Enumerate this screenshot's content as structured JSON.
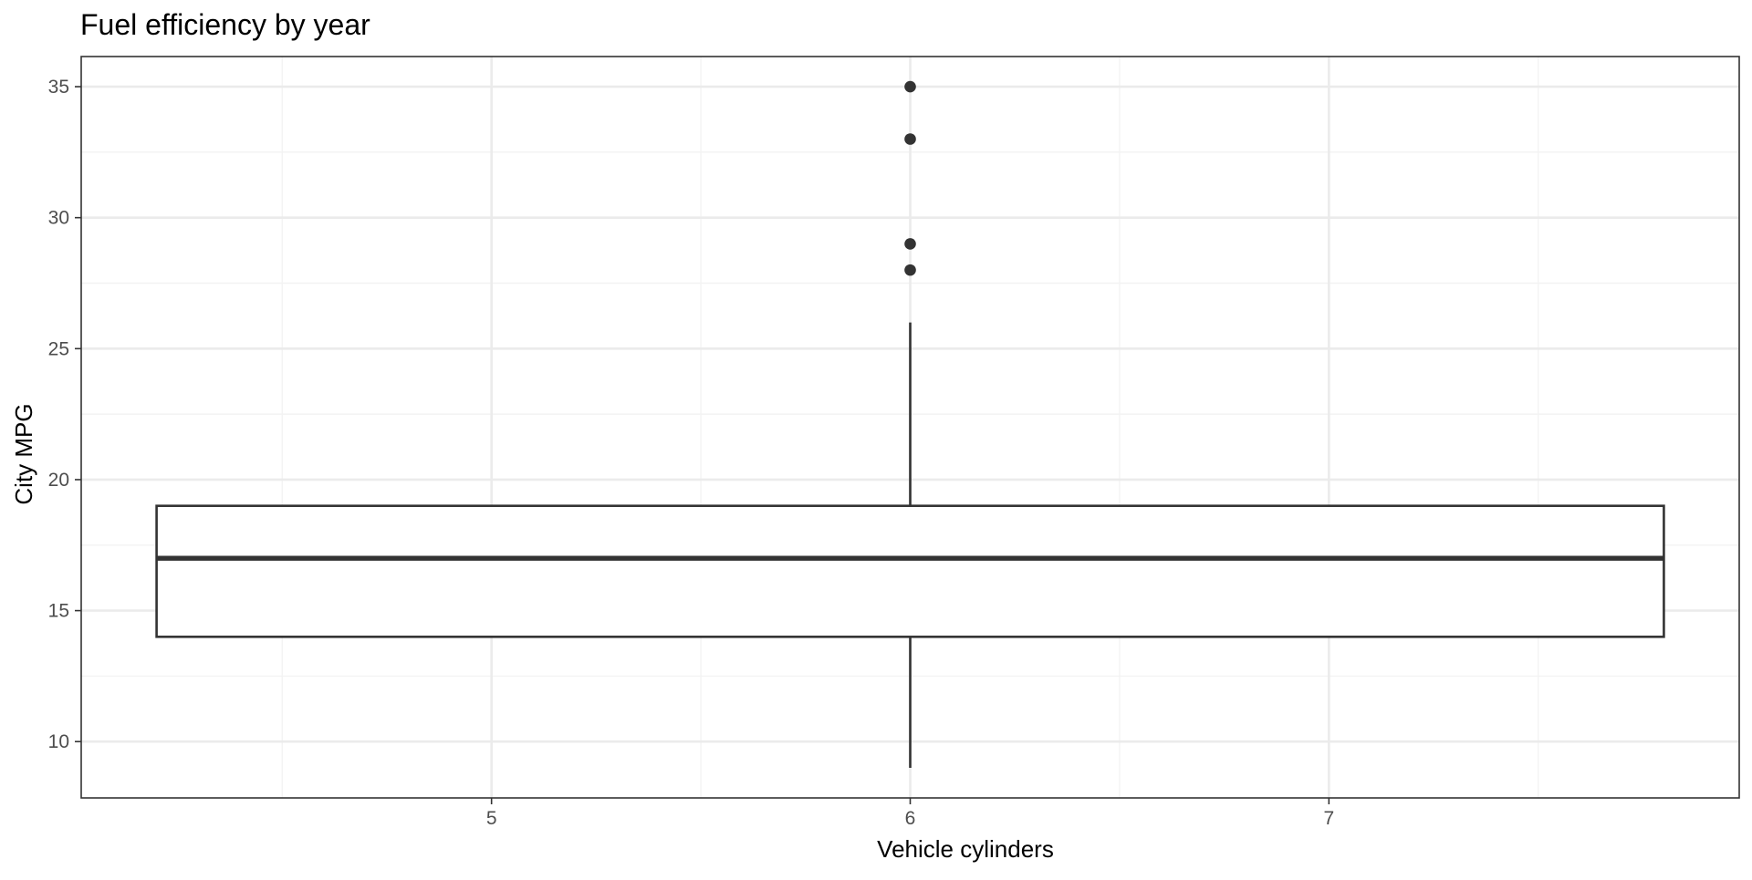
{
  "chart_data": {
    "type": "boxplot",
    "title": "Fuel efficiency by year",
    "xlabel": "Vehicle cylinders",
    "ylabel": "City MPG",
    "xlim": [
      4.02,
      7.98
    ],
    "ylim": [
      7.85,
      36.15
    ],
    "x_ticks": [
      5,
      6,
      7
    ],
    "x_minor_ticks": [
      4.5,
      5.5,
      6.5,
      7.5
    ],
    "y_ticks": [
      10,
      15,
      20,
      25,
      30,
      35
    ],
    "y_minor_ticks": [
      12.5,
      17.5,
      22.5,
      27.5,
      32.5
    ],
    "grid": true,
    "box": {
      "x": 6,
      "x_min": 4.2,
      "x_max": 7.8,
      "q1": 14,
      "median": 17,
      "q3": 19,
      "whisker_low": 9,
      "whisker_high": 26,
      "outliers": [
        35,
        33,
        29,
        28
      ]
    },
    "colors": {
      "panel_border": "#333333",
      "grid_major": "#ebebeb",
      "grid_minor": "#f3f3f3",
      "box_stroke": "#333333",
      "box_fill": "#ffffff",
      "tick_label": "#4d4d4d"
    }
  }
}
